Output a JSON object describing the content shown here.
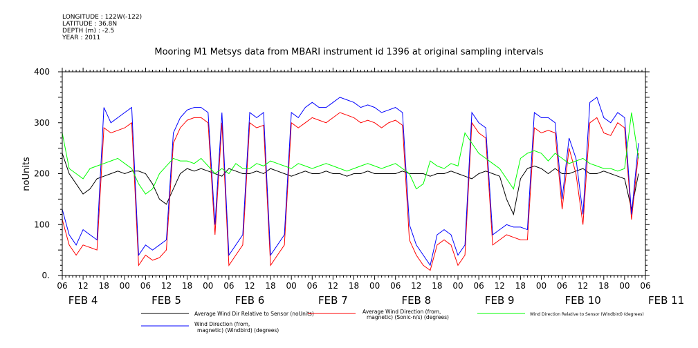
{
  "header": {
    "longitude": "LONGITUDE : 122W(-122)",
    "latitude": "LATITUDE : 36.8N",
    "depth": "DEPTH (m) : -2.5",
    "year": "YEAR : 2011"
  },
  "chart_data": {
    "type": "line",
    "title": "Mooring M1 Metsys data from MBARI instrument id 1396 at original sampling intervals",
    "ylabel": "noUnits",
    "xlabel": "",
    "ylim": [
      0,
      400
    ],
    "yticks": [
      0,
      100,
      200,
      300,
      400
    ],
    "ytick_labels": [
      "0.",
      "100",
      "200",
      "300",
      "400"
    ],
    "xlim_hours": [
      6,
      174
    ],
    "hour_tick_labels": [
      "06",
      "12",
      "18",
      "00",
      "06",
      "12",
      "18",
      "00",
      "06",
      "12",
      "18",
      "00",
      "06",
      "12",
      "18",
      "00",
      "06",
      "12",
      "18",
      "00",
      "06",
      "12",
      "18",
      "00",
      "06",
      "12",
      "18",
      "00",
      "06"
    ],
    "day_labels": [
      "FEB  4",
      "FEB  5",
      "FEB  6",
      "FEB  7",
      "FEB  8",
      "FEB  9",
      "FEB 10",
      "FEB 11"
    ],
    "grid": false,
    "legend_position": "bottom",
    "series": [
      {
        "name": "Average Wind Dir Relative to Sensor (noUnits)",
        "color": "#000000",
        "x": [
          6,
          8,
          10,
          12,
          14,
          16,
          18,
          20,
          22,
          24,
          26,
          28,
          30,
          32,
          34,
          36,
          38,
          40,
          42,
          44,
          46,
          48,
          50,
          52,
          54,
          56,
          58,
          60,
          62,
          64,
          66,
          68,
          70,
          72,
          74,
          76,
          78,
          80,
          82,
          84,
          86,
          88,
          90,
          92,
          94,
          96,
          98,
          100,
          102,
          104,
          106,
          108,
          110,
          112,
          114,
          116,
          118,
          120,
          122,
          124,
          126,
          128,
          130,
          132,
          134,
          136,
          138,
          140,
          142,
          144,
          146,
          148,
          150,
          152,
          154,
          156,
          158,
          160,
          162,
          164,
          166,
          168,
          170,
          172
        ],
        "values": [
          240,
          200,
          180,
          160,
          170,
          190,
          195,
          200,
          205,
          200,
          205,
          205,
          200,
          180,
          150,
          140,
          170,
          200,
          210,
          205,
          210,
          205,
          200,
          195,
          210,
          205,
          200,
          200,
          205,
          200,
          210,
          205,
          200,
          195,
          200,
          205,
          200,
          200,
          205,
          200,
          200,
          195,
          200,
          200,
          205,
          200,
          200,
          200,
          200,
          205,
          200,
          200,
          200,
          195,
          200,
          200,
          205,
          200,
          195,
          190,
          200,
          205,
          200,
          195,
          150,
          120,
          190,
          210,
          215,
          210,
          200,
          210,
          200,
          200,
          205,
          210,
          200,
          200,
          205,
          200,
          195,
          190,
          130,
          200
        ]
      },
      {
        "name": "Average Wind Direction (from, magnetic) (Sonic-n/s) (degrees)",
        "color": "#ff0000",
        "x": [
          6,
          8,
          10,
          12,
          14,
          16,
          18,
          20,
          22,
          24,
          26,
          28,
          30,
          32,
          34,
          36,
          38,
          40,
          42,
          44,
          46,
          48,
          50,
          52,
          54,
          56,
          58,
          60,
          62,
          64,
          66,
          68,
          70,
          72,
          74,
          76,
          78,
          80,
          82,
          84,
          86,
          88,
          90,
          92,
          94,
          96,
          98,
          100,
          102,
          104,
          106,
          108,
          110,
          112,
          114,
          116,
          118,
          120,
          122,
          124,
          126,
          128,
          130,
          132,
          134,
          136,
          138,
          140,
          142,
          144,
          146,
          148,
          150,
          152,
          154,
          156,
          158,
          160,
          162,
          164,
          166,
          168,
          170,
          172
        ],
        "values": [
          110,
          60,
          40,
          60,
          55,
          50,
          290,
          280,
          285,
          290,
          300,
          20,
          40,
          30,
          35,
          50,
          260,
          290,
          305,
          310,
          310,
          300,
          80,
          300,
          20,
          40,
          60,
          300,
          290,
          295,
          20,
          40,
          60,
          300,
          290,
          300,
          310,
          305,
          300,
          310,
          320,
          315,
          310,
          300,
          305,
          300,
          290,
          300,
          305,
          295,
          70,
          40,
          20,
          10,
          60,
          70,
          60,
          20,
          40,
          300,
          280,
          270,
          60,
          70,
          80,
          75,
          70,
          70,
          290,
          280,
          285,
          280,
          130,
          250,
          200,
          100,
          300,
          310,
          280,
          275,
          300,
          290,
          110,
          240
        ]
      },
      {
        "name": "Wind Direction Relative to Sensor (Windbird) (degrees)",
        "color": "#00ff00",
        "x": [
          6,
          8,
          10,
          12,
          14,
          16,
          18,
          20,
          22,
          24,
          26,
          28,
          30,
          32,
          34,
          36,
          38,
          40,
          42,
          44,
          46,
          48,
          50,
          52,
          54,
          56,
          58,
          60,
          62,
          64,
          66,
          68,
          70,
          72,
          74,
          76,
          78,
          80,
          82,
          84,
          86,
          88,
          90,
          92,
          94,
          96,
          98,
          100,
          102,
          104,
          106,
          108,
          110,
          112,
          114,
          116,
          118,
          120,
          122,
          124,
          126,
          128,
          130,
          132,
          134,
          136,
          138,
          140,
          142,
          144,
          146,
          148,
          150,
          152,
          154,
          156,
          158,
          160,
          162,
          164,
          166,
          168,
          170,
          172
        ],
        "values": [
          280,
          210,
          200,
          190,
          210,
          215,
          220,
          225,
          230,
          220,
          210,
          180,
          160,
          170,
          200,
          215,
          230,
          225,
          225,
          220,
          230,
          215,
          200,
          210,
          200,
          220,
          210,
          210,
          220,
          215,
          225,
          220,
          215,
          210,
          220,
          215,
          210,
          215,
          220,
          215,
          210,
          205,
          210,
          215,
          220,
          215,
          210,
          215,
          220,
          210,
          200,
          170,
          180,
          225,
          215,
          210,
          220,
          215,
          280,
          260,
          240,
          230,
          220,
          210,
          190,
          170,
          230,
          240,
          245,
          240,
          225,
          240,
          230,
          220,
          225,
          230,
          220,
          215,
          210,
          210,
          205,
          210,
          320,
          230
        ]
      },
      {
        "name": "Wind Direction (from, magnetic) (Windbird) (degrees)",
        "color": "#0000ff",
        "x": [
          6,
          8,
          10,
          12,
          14,
          16,
          18,
          20,
          22,
          24,
          26,
          28,
          30,
          32,
          34,
          36,
          38,
          40,
          42,
          44,
          46,
          48,
          50,
          52,
          54,
          56,
          58,
          60,
          62,
          64,
          66,
          68,
          70,
          72,
          74,
          76,
          78,
          80,
          82,
          84,
          86,
          88,
          90,
          92,
          94,
          96,
          98,
          100,
          102,
          104,
          106,
          108,
          110,
          112,
          114,
          116,
          118,
          120,
          122,
          124,
          126,
          128,
          130,
          132,
          134,
          136,
          138,
          140,
          142,
          144,
          146,
          148,
          150,
          152,
          154,
          156,
          158,
          160,
          162,
          164,
          166,
          168,
          170,
          172
        ],
        "values": [
          130,
          80,
          60,
          90,
          80,
          70,
          330,
          300,
          310,
          320,
          330,
          40,
          60,
          50,
          60,
          70,
          280,
          310,
          325,
          330,
          330,
          320,
          100,
          320,
          40,
          60,
          80,
          320,
          310,
          320,
          40,
          60,
          80,
          320,
          310,
          330,
          340,
          330,
          330,
          340,
          350,
          345,
          340,
          330,
          335,
          330,
          320,
          325,
          330,
          320,
          100,
          60,
          40,
          20,
          80,
          90,
          80,
          40,
          60,
          320,
          300,
          290,
          80,
          90,
          100,
          95,
          95,
          90,
          320,
          310,
          310,
          300,
          150,
          270,
          230,
          120,
          340,
          350,
          310,
          300,
          320,
          310,
          120,
          260
        ]
      }
    ]
  },
  "legend": [
    {
      "label": "Average Wind Dir Relative to Sensor (noUnits)",
      "color": "#000000"
    },
    {
      "label_line1": "Average Wind Direction (from,",
      "label_line2": "magnetic) (Sonic-n/s) (degrees)",
      "color": "#ff0000"
    },
    {
      "label": "Wind Direction Relative to Sensor (Windbird) (degrees)",
      "color": "#00ff00"
    },
    {
      "label_line1": "Wind Direction (from,",
      "label_line2": "magnetic) (Windbird) (degrees)",
      "color": "#0000ff"
    }
  ]
}
